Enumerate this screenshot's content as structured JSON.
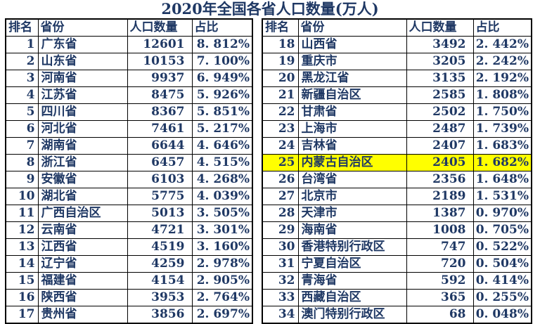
{
  "title": "2020年全国各省人口数量(万人)",
  "columns": [
    "排名",
    "省份",
    "人口数量",
    "占比"
  ],
  "left_table": {
    "rows": [
      [
        "1",
        "广东省",
        "12601",
        "8. 812%"
      ],
      [
        "2",
        "山东省",
        "10153",
        "7. 100%"
      ],
      [
        "3",
        "河南省",
        "9937",
        "6. 949%"
      ],
      [
        "4",
        "江苏省",
        "8475",
        "5. 926%"
      ],
      [
        "5",
        "四川省",
        "8367",
        "5. 851%"
      ],
      [
        "6",
        "河北省",
        "7461",
        "5. 217%"
      ],
      [
        "7",
        "湖南省",
        "6644",
        "4. 646%"
      ],
      [
        "8",
        "浙江省",
        "6457",
        "4. 515%"
      ],
      [
        "9",
        "安徽省",
        "6103",
        "4. 268%"
      ],
      [
        "10",
        "湖北省",
        "5775",
        "4. 039%"
      ],
      [
        "11",
        "广西自治区",
        "5013",
        "3. 505%"
      ],
      [
        "12",
        "云南省",
        "4721",
        "3. 301%"
      ],
      [
        "13",
        "江西省",
        "4519",
        "3. 160%"
      ],
      [
        "14",
        "辽宁省",
        "4259",
        "2. 978%"
      ],
      [
        "15",
        "福建省",
        "4154",
        "2. 905%"
      ],
      [
        "16",
        "陕西省",
        "3953",
        "2. 764%"
      ],
      [
        "17",
        "贵州省",
        "3856",
        "2. 697%"
      ]
    ]
  },
  "right_table": {
    "rows": [
      [
        "18",
        "山西省",
        "3492",
        "2. 442%"
      ],
      [
        "19",
        "重庆市",
        "3205",
        "2. 242%"
      ],
      [
        "20",
        "黑龙江省",
        "3135",
        "2. 192%"
      ],
      [
        "21",
        "新疆自治区",
        "2585",
        "1. 808%"
      ],
      [
        "22",
        "甘肃省",
        "2502",
        "1. 750%"
      ],
      [
        "23",
        "上海市",
        "2487",
        "1. 739%"
      ],
      [
        "24",
        "吉林省",
        "2407",
        "1. 683%"
      ],
      [
        "25",
        "内蒙古自治区",
        "2405",
        "1. 682%"
      ],
      [
        "26",
        "台湾省",
        "2356",
        "1. 648%"
      ],
      [
        "27",
        "北京市",
        "2189",
        "1. 531%"
      ],
      [
        "28",
        "天津市",
        "1387",
        "0. 970%"
      ],
      [
        "29",
        "海南省",
        "1008",
        "0. 705%"
      ],
      [
        "30",
        "香港特别行政区",
        "747",
        "0. 522%"
      ],
      [
        "31",
        "宁夏自治区",
        "720",
        "0. 504%"
      ],
      [
        "32",
        "青海省",
        "592",
        "0. 414%"
      ],
      [
        "33",
        "西藏自治区",
        "365",
        "0. 255%"
      ],
      [
        "34",
        "澳门特别行政区",
        "68",
        "0. 048%"
      ]
    ]
  },
  "highlight": {
    "rank": "25",
    "province": "内蒙古自治区",
    "color": "#FFFF00"
  },
  "colors": {
    "text": "#1F3864",
    "grid": "#000000",
    "background": "#FFFFFF",
    "highlight": "#FFFF00"
  },
  "chart_data": {
    "type": "table",
    "title": "2020年全国各省人口数量(万人)",
    "columns": [
      "排名",
      "省份",
      "人口数量",
      "占比"
    ],
    "unit": "万人",
    "percent_unit": "%",
    "rows": [
      [
        1,
        "广东省",
        12601,
        8.812
      ],
      [
        2,
        "山东省",
        10153,
        7.1
      ],
      [
        3,
        "河南省",
        9937,
        6.949
      ],
      [
        4,
        "江苏省",
        8475,
        5.926
      ],
      [
        5,
        "四川省",
        8367,
        5.851
      ],
      [
        6,
        "河北省",
        7461,
        5.217
      ],
      [
        7,
        "湖南省",
        6644,
        4.646
      ],
      [
        8,
        "浙江省",
        6457,
        4.515
      ],
      [
        9,
        "安徽省",
        6103,
        4.268
      ],
      [
        10,
        "湖北省",
        5775,
        4.039
      ],
      [
        11,
        "广西自治区",
        5013,
        3.505
      ],
      [
        12,
        "云南省",
        4721,
        3.301
      ],
      [
        13,
        "江西省",
        4519,
        3.16
      ],
      [
        14,
        "辽宁省",
        4259,
        2.978
      ],
      [
        15,
        "福建省",
        4154,
        2.905
      ],
      [
        16,
        "陕西省",
        3953,
        2.764
      ],
      [
        17,
        "贵州省",
        3856,
        2.697
      ],
      [
        18,
        "山西省",
        3492,
        2.442
      ],
      [
        19,
        "重庆市",
        3205,
        2.242
      ],
      [
        20,
        "黑龙江省",
        3135,
        2.192
      ],
      [
        21,
        "新疆自治区",
        2585,
        1.808
      ],
      [
        22,
        "甘肃省",
        2502,
        1.75
      ],
      [
        23,
        "上海市",
        2487,
        1.739
      ],
      [
        24,
        "吉林省",
        2407,
        1.683
      ],
      [
        25,
        "内蒙古自治区",
        2405,
        1.682
      ],
      [
        26,
        "台湾省",
        2356,
        1.648
      ],
      [
        27,
        "北京市",
        2189,
        1.531
      ],
      [
        28,
        "天津市",
        1387,
        0.97
      ],
      [
        29,
        "海南省",
        1008,
        0.705
      ],
      [
        30,
        "香港特别行政区",
        747,
        0.522
      ],
      [
        31,
        "宁夏自治区",
        720,
        0.504
      ],
      [
        32,
        "青海省",
        592,
        0.414
      ],
      [
        33,
        "西藏自治区",
        365,
        0.255
      ],
      [
        34,
        "澳门特别行政区",
        68,
        0.048
      ]
    ],
    "highlighted_row": {
      "排名": 25,
      "省份": "内蒙古自治区"
    },
    "layout": {
      "split": "two side-by-side tables, ranks 1-17 left, 18-34 right"
    }
  }
}
